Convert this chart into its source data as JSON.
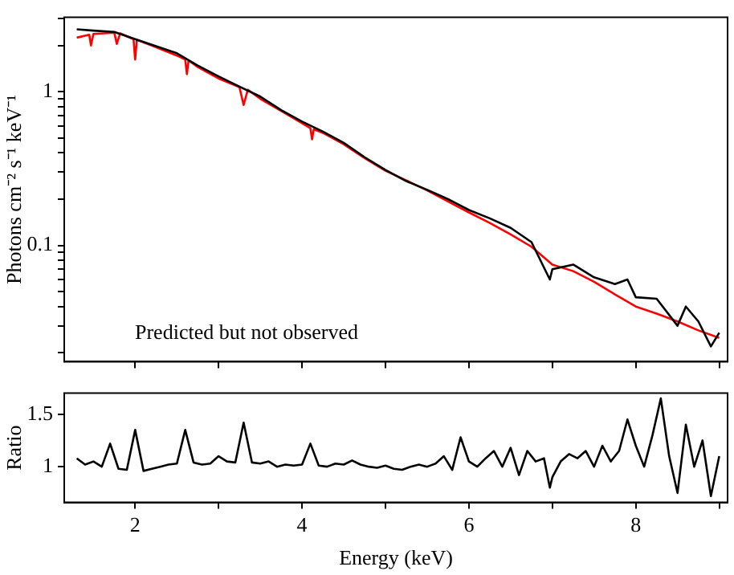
{
  "chart_data": [
    {
      "type": "line",
      "ylabel": "Photons cm⁻² s⁻¹ keV⁻¹",
      "annotations": [
        "Predicted but not observed"
      ],
      "log": "y",
      "tick_labels": "y",
      "grid": false,
      "legend": false,
      "marker": "none",
      "line_style": "solid",
      "xlim": [
        1.15,
        9.1
      ],
      "xticks": [
        2,
        {
          "value": 3,
          "label": null
        },
        4,
        {
          "value": 5,
          "label": null
        },
        6,
        {
          "value": 7,
          "label": null
        },
        8,
        {
          "value": 9,
          "label": null
        }
      ],
      "ylim": [
        0.0175,
        3.05
      ],
      "yticks": [
        {
          "value": 0.02,
          "label": null
        },
        {
          "value": 0.03,
          "label": null
        },
        {
          "value": 0.04,
          "label": null
        },
        {
          "value": 0.05,
          "label": null
        },
        {
          "value": 0.06,
          "label": null
        },
        {
          "value": 0.07,
          "label": null
        },
        {
          "value": 0.08,
          "label": null
        },
        {
          "value": 0.09,
          "label": null
        },
        0.1,
        {
          "value": 0.2,
          "label": null
        },
        {
          "value": 0.3,
          "label": null
        },
        {
          "value": 0.4,
          "label": null
        },
        {
          "value": 0.5,
          "label": null
        },
        {
          "value": 0.6,
          "label": null
        },
        {
          "value": 0.7,
          "label": null
        },
        {
          "value": 0.8,
          "label": null
        },
        {
          "value": 0.9,
          "label": null
        },
        1,
        {
          "value": 2,
          "label": null
        },
        {
          "value": 3,
          "label": null
        }
      ],
      "series": [
        {
          "color": "#000000",
          "x": [
            1.3,
            1.5,
            1.75,
            2.0,
            2.25,
            2.5,
            2.75,
            3.0,
            3.25,
            3.5,
            3.75,
            4.0,
            4.25,
            4.5,
            4.75,
            5.0,
            5.25,
            5.5,
            5.75,
            6.0,
            6.25,
            6.5,
            6.75,
            6.97,
            7.0,
            7.25,
            7.5,
            7.75,
            7.9,
            8.0,
            8.25,
            8.5,
            8.6,
            8.75,
            8.9,
            9.0
          ],
          "values": [
            2.55,
            2.5,
            2.45,
            2.2,
            1.98,
            1.78,
            1.48,
            1.26,
            1.08,
            0.93,
            0.76,
            0.64,
            0.55,
            0.465,
            0.375,
            0.31,
            0.262,
            0.23,
            0.2,
            0.17,
            0.15,
            0.13,
            0.105,
            0.06,
            0.07,
            0.075,
            0.062,
            0.056,
            0.06,
            0.046,
            0.045,
            0.03,
            0.04,
            0.032,
            0.022,
            0.027
          ]
        },
        {
          "color": "#ff0000",
          "x": [
            1.3,
            1.45,
            1.47,
            1.5,
            1.75,
            1.78,
            1.82,
            1.98,
            2.0,
            2.02,
            2.25,
            2.5,
            2.6,
            2.62,
            2.64,
            2.75,
            3.0,
            3.25,
            3.3,
            3.35,
            3.5,
            3.75,
            4.0,
            4.1,
            4.12,
            4.14,
            4.25,
            4.5,
            4.75,
            5.0,
            5.25,
            5.5,
            5.75,
            6.0,
            6.25,
            6.5,
            6.75,
            7.0,
            7.25,
            7.5,
            7.75,
            8.0,
            8.25,
            8.5,
            8.75,
            9.0
          ],
          "values": [
            2.25,
            2.35,
            2.0,
            2.38,
            2.42,
            2.05,
            2.4,
            2.2,
            1.62,
            2.18,
            1.95,
            1.72,
            1.62,
            1.3,
            1.6,
            1.45,
            1.22,
            1.07,
            0.82,
            1.03,
            0.9,
            0.75,
            0.625,
            0.58,
            0.49,
            0.57,
            0.54,
            0.455,
            0.37,
            0.306,
            0.265,
            0.228,
            0.193,
            0.164,
            0.14,
            0.118,
            0.098,
            0.075,
            0.068,
            0.058,
            0.048,
            0.04,
            0.036,
            0.032,
            0.028,
            0.025
          ]
        }
      ]
    },
    {
      "type": "line",
      "xlabel": "Energy (keV)",
      "ylabel": "Ratio",
      "grid": false,
      "legend": false,
      "marker": "none",
      "line_style": "solid",
      "xlim": [
        1.15,
        9.1
      ],
      "xticks": [
        2,
        {
          "value": 3,
          "label": null
        },
        4,
        {
          "value": 5,
          "label": null
        },
        6,
        {
          "value": 7,
          "label": null
        },
        8,
        {
          "value": 9,
          "label": null
        }
      ],
      "ylim": [
        0.66,
        1.7
      ],
      "yticks": [
        1,
        1.5
      ],
      "series": [
        {
          "color": "#000000",
          "x": [
            1.3,
            1.4,
            1.5,
            1.6,
            1.7,
            1.8,
            1.9,
            2.0,
            2.1,
            2.2,
            2.3,
            2.4,
            2.5,
            2.6,
            2.7,
            2.8,
            2.9,
            3.0,
            3.1,
            3.2,
            3.3,
            3.4,
            3.5,
            3.6,
            3.7,
            3.8,
            3.9,
            4.0,
            4.1,
            4.2,
            4.3,
            4.4,
            4.5,
            4.6,
            4.7,
            4.8,
            4.9,
            5.0,
            5.1,
            5.2,
            5.3,
            5.4,
            5.5,
            5.6,
            5.7,
            5.8,
            5.9,
            6.0,
            6.1,
            6.2,
            6.3,
            6.4,
            6.5,
            6.6,
            6.7,
            6.8,
            6.9,
            6.97,
            7.0,
            7.1,
            7.2,
            7.3,
            7.4,
            7.5,
            7.6,
            7.7,
            7.8,
            7.9,
            8.0,
            8.1,
            8.2,
            8.3,
            8.4,
            8.5,
            8.6,
            8.7,
            8.8,
            8.9,
            9.0
          ],
          "values": [
            1.08,
            1.02,
            1.05,
            1.0,
            1.22,
            0.98,
            0.97,
            1.35,
            0.96,
            0.98,
            1.0,
            1.02,
            1.03,
            1.35,
            1.04,
            1.02,
            1.03,
            1.1,
            1.05,
            1.04,
            1.42,
            1.04,
            1.03,
            1.05,
            1.0,
            1.02,
            1.01,
            1.02,
            1.22,
            1.01,
            1.0,
            1.03,
            1.02,
            1.06,
            1.02,
            1.0,
            0.99,
            1.01,
            0.98,
            0.97,
            1.0,
            1.02,
            1.0,
            1.03,
            1.1,
            0.97,
            1.28,
            1.05,
            1.0,
            1.08,
            1.15,
            1.0,
            1.18,
            0.92,
            1.15,
            1.05,
            1.08,
            0.8,
            0.9,
            1.05,
            1.12,
            1.08,
            1.15,
            1.0,
            1.2,
            1.05,
            1.15,
            1.45,
            1.2,
            1.0,
            1.3,
            1.65,
            1.1,
            0.75,
            1.4,
            1.0,
            1.25,
            0.72,
            1.1
          ]
        }
      ]
    }
  ]
}
